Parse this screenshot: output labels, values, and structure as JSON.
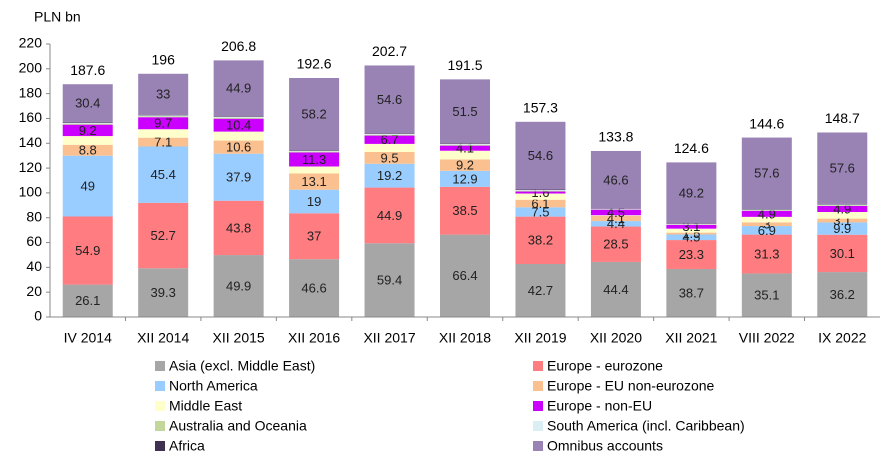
{
  "chart_data": {
    "type": "stacked_bar",
    "ylabel": "PLN bn",
    "categories": [
      "IV 2014",
      "XII 2014",
      "XII 2015",
      "XII 2016",
      "XII 2017",
      "XII 2018",
      "XII 2019",
      "XII 2020",
      "XII 2021",
      "VIII 2022",
      "IX 2022"
    ],
    "totals": [
      187.6,
      196.0,
      206.8,
      192.6,
      202.7,
      191.5,
      157.3,
      133.8,
      124.6,
      144.6,
      148.7
    ],
    "ylim": [
      0,
      220
    ],
    "yticks": [
      0,
      20,
      40,
      60,
      80,
      100,
      120,
      140,
      160,
      180,
      200,
      220
    ],
    "grid": false,
    "series": [
      {
        "name": "Asia (excl. Middle East)",
        "color": "#a6a6a6",
        "data_labels": true,
        "values": [
          26.1,
          39.3,
          49.9,
          46.6,
          59.4,
          66.4,
          42.7,
          44.4,
          38.7,
          35.1,
          36.2
        ]
      },
      {
        "name": "Europe - eurozone",
        "color": "#ff7c80",
        "data_labels": true,
        "values": [
          54.9,
          52.7,
          43.8,
          37.0,
          44.9,
          38.5,
          38.2,
          28.5,
          23.3,
          31.3,
          30.1
        ]
      },
      {
        "name": "North America",
        "color": "#99ccff",
        "data_labels": true,
        "values": [
          49.0,
          45.4,
          37.9,
          19.0,
          19.2,
          12.9,
          7.5,
          4.4,
          4.5,
          6.9,
          9.9
        ]
      },
      {
        "name": "Europe - EU non-eurozone",
        "color": "#fac090",
        "data_labels": true,
        "values": [
          8.8,
          7.1,
          10.6,
          13.1,
          9.5,
          9.2,
          6.1,
          4.1,
          1.5,
          3.0,
          3.1
        ]
      },
      {
        "name": "Middle East",
        "color": "#ffffcc",
        "data_labels": false,
        "values": [
          7.0,
          6.8,
          7.2,
          5.6,
          6.5,
          7.0,
          5.0,
          0.6,
          3.2,
          4.4,
          5.3
        ]
      },
      {
        "name": "Europe - non-EU",
        "color": "#cc00ff",
        "data_labels": true,
        "values": [
          9.2,
          9.7,
          10.4,
          11.3,
          6.7,
          4.1,
          1.6,
          4.5,
          3.1,
          4.9,
          4.9
        ]
      },
      {
        "name": "Australia and Oceania",
        "color": "#c3d69b",
        "data_labels": false,
        "values": [
          0.8,
          0.8,
          0.8,
          0.7,
          0.7,
          0.7,
          0.6,
          0.3,
          0.4,
          0.5,
          0.6
        ]
      },
      {
        "name": "South America (incl. Caribbean)",
        "color": "#dbeef4",
        "data_labels": false,
        "values": [
          0.8,
          0.7,
          0.8,
          0.6,
          0.7,
          0.7,
          0.6,
          0.2,
          0.4,
          0.5,
          0.6
        ]
      },
      {
        "name": "Africa",
        "color": "#403152",
        "data_labels": false,
        "values": [
          0.6,
          0.5,
          0.5,
          0.5,
          0.5,
          0.5,
          0.4,
          0.2,
          0.3,
          0.4,
          0.4
        ]
      },
      {
        "name": "Omnibus accounts",
        "color": "#9982b4",
        "data_labels": true,
        "values": [
          30.4,
          33.0,
          44.9,
          58.2,
          54.6,
          51.5,
          54.6,
          46.6,
          49.2,
          57.6,
          57.6
        ]
      }
    ]
  }
}
